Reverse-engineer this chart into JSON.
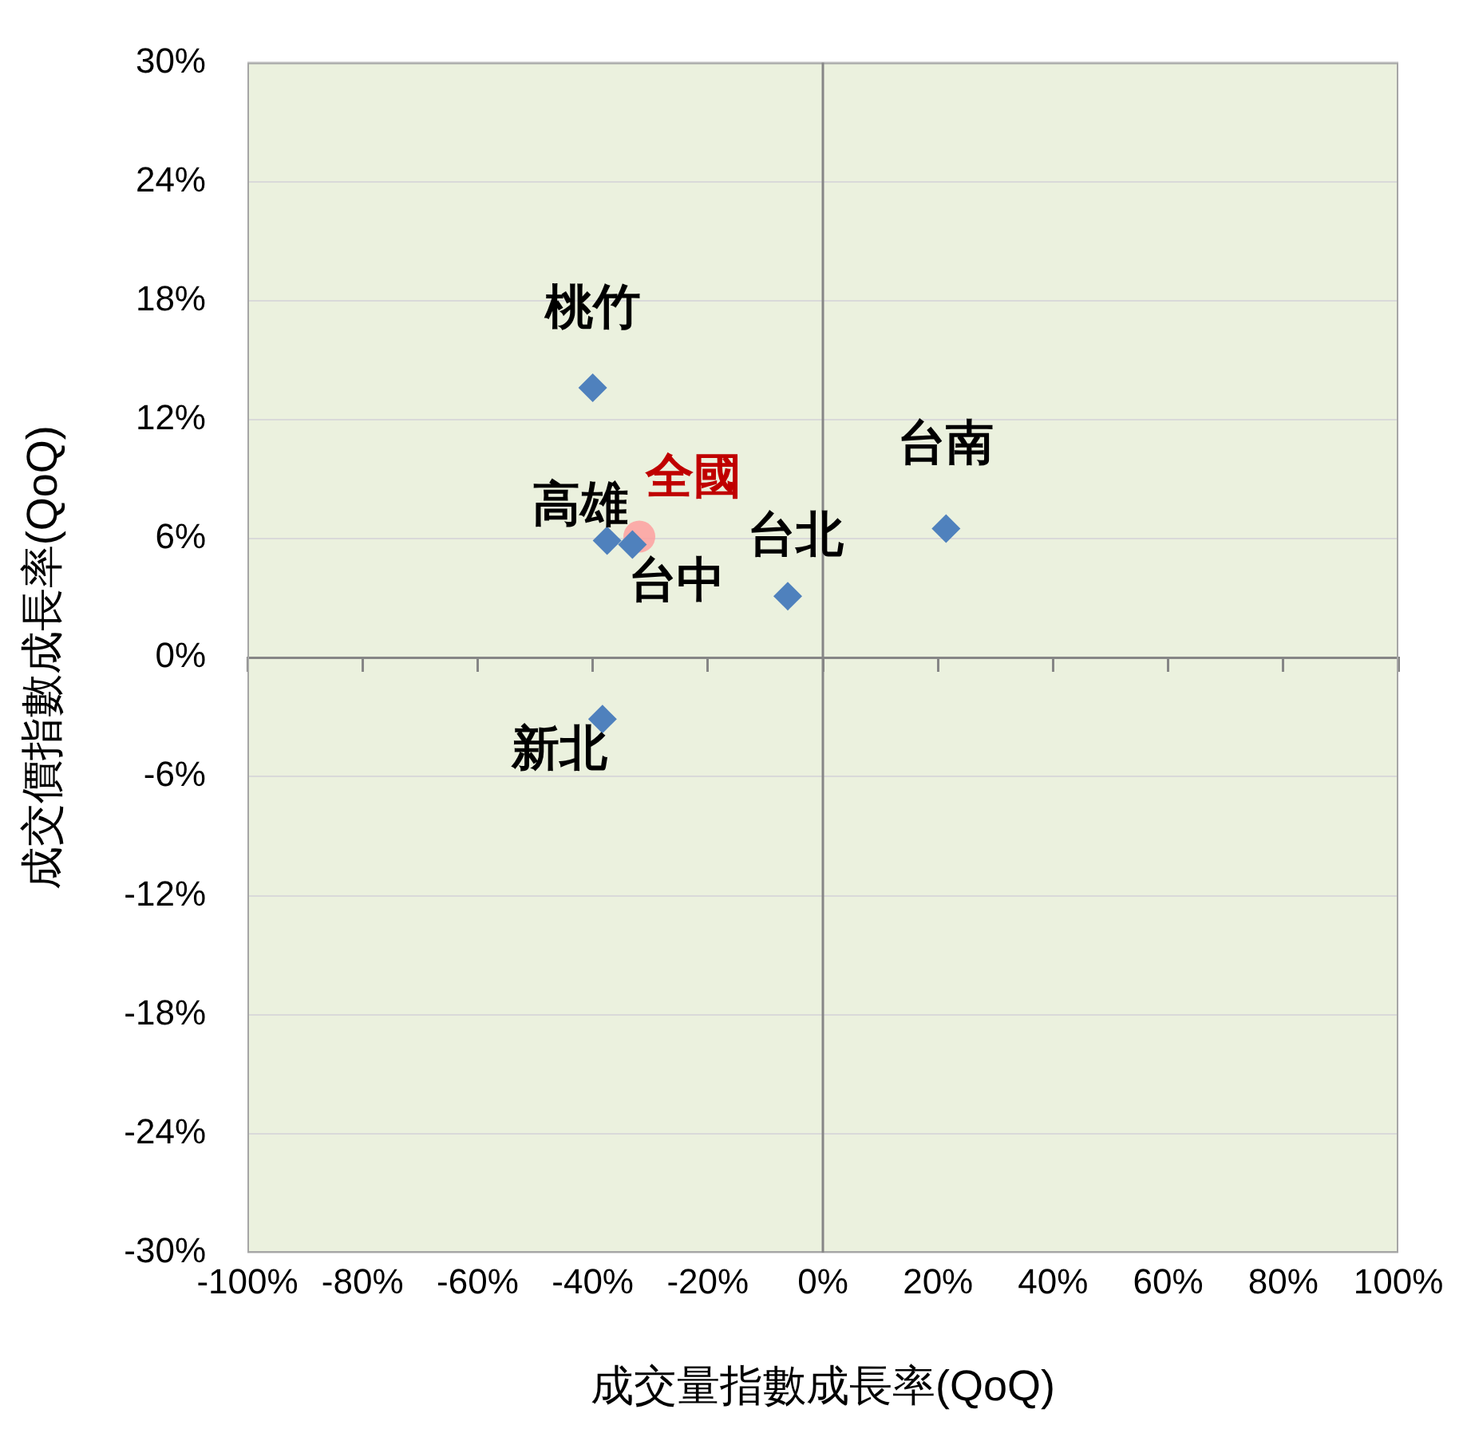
{
  "chart_data": {
    "type": "scatter",
    "xlabel": "成交量指數成長率(QoQ)",
    "ylabel": "成交價指數成長率(QoQ)",
    "xlim": [
      -100,
      100
    ],
    "ylim": [
      -30,
      30
    ],
    "xticks": [
      {
        "value": -100,
        "label": "-100%"
      },
      {
        "value": -80,
        "label": "-80%"
      },
      {
        "value": -60,
        "label": "-60%"
      },
      {
        "value": -40,
        "label": "-40%"
      },
      {
        "value": -20,
        "label": "-20%"
      },
      {
        "value": 0,
        "label": "0%"
      },
      {
        "value": 20,
        "label": "20%"
      },
      {
        "value": 40,
        "label": "40%"
      },
      {
        "value": 60,
        "label": "60%"
      },
      {
        "value": 80,
        "label": "80%"
      },
      {
        "value": 100,
        "label": "100%"
      }
    ],
    "yticks": [
      {
        "value": -30,
        "label": "-30%"
      },
      {
        "value": -24,
        "label": "-24%"
      },
      {
        "value": -18,
        "label": "-18%"
      },
      {
        "value": -12,
        "label": "-12%"
      },
      {
        "value": -6,
        "label": "-6%"
      },
      {
        "value": 0,
        "label": "0%"
      },
      {
        "value": 6,
        "label": "6%"
      },
      {
        "value": 12,
        "label": "12%"
      },
      {
        "value": 18,
        "label": "18%"
      },
      {
        "value": 24,
        "label": "24%"
      },
      {
        "value": 30,
        "label": "30%"
      }
    ],
    "grid": "y",
    "legend": false,
    "marker": "diamond",
    "ref_lines": [
      {
        "axis": "x",
        "value": 0,
        "color": "#868686"
      }
    ],
    "series": [
      {
        "name": "桃竹",
        "color": "#4f81bd",
        "x": [
          -40
        ],
        "values": [
          13.6
        ]
      },
      {
        "name": "台南",
        "color": "#4f81bd",
        "x": [
          21.4
        ],
        "values": [
          6.5
        ]
      },
      {
        "name": "台北",
        "color": "#4f81bd",
        "x": [
          -6.1
        ],
        "values": [
          3.1
        ]
      },
      {
        "name": "高雄",
        "color": "#4f81bd",
        "x": [
          -37.5
        ],
        "values": [
          5.9
        ]
      },
      {
        "name": "台中",
        "color": "#4f81bd",
        "x": [
          -33.1
        ],
        "values": [
          5.7
        ]
      },
      {
        "name": "全國",
        "color": "#ff9b9b",
        "marker": "circle",
        "x": [
          -31.9
        ],
        "values": [
          6.1
        ]
      },
      {
        "name": "新北",
        "color": "#4f81bd",
        "x": [
          -38.3
        ],
        "values": [
          -3.1
        ]
      }
    ]
  }
}
